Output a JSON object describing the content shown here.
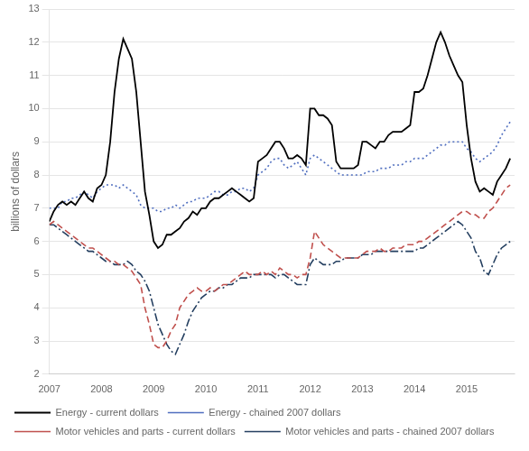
{
  "chart_data": {
    "type": "line",
    "ylabel": "billions of dollars",
    "x": [
      2007.0,
      2007.083,
      2007.167,
      2007.25,
      2007.333,
      2007.417,
      2007.5,
      2007.583,
      2007.667,
      2007.75,
      2007.833,
      2007.917,
      2008.0,
      2008.083,
      2008.167,
      2008.25,
      2008.333,
      2008.417,
      2008.5,
      2008.583,
      2008.667,
      2008.75,
      2008.833,
      2008.917,
      2009.0,
      2009.083,
      2009.167,
      2009.25,
      2009.333,
      2009.417,
      2009.5,
      2009.583,
      2009.667,
      2009.75,
      2009.833,
      2009.917,
      2010.0,
      2010.083,
      2010.167,
      2010.25,
      2010.333,
      2010.417,
      2010.5,
      2010.583,
      2010.667,
      2010.75,
      2010.833,
      2010.917,
      2011.0,
      2011.083,
      2011.167,
      2011.25,
      2011.333,
      2011.417,
      2011.5,
      2011.583,
      2011.667,
      2011.75,
      2011.833,
      2011.917,
      2012.0,
      2012.083,
      2012.167,
      2012.25,
      2012.333,
      2012.417,
      2012.5,
      2012.583,
      2012.667,
      2012.75,
      2012.833,
      2012.917,
      2013.0,
      2013.083,
      2013.167,
      2013.25,
      2013.333,
      2013.417,
      2013.5,
      2013.583,
      2013.667,
      2013.75,
      2013.833,
      2013.917,
      2014.0,
      2014.083,
      2014.167,
      2014.25,
      2014.333,
      2014.417,
      2014.5,
      2014.583,
      2014.667,
      2014.75,
      2014.833,
      2014.917,
      2015.0,
      2015.083,
      2015.167,
      2015.25,
      2015.333,
      2015.417,
      2015.5,
      2015.583,
      2015.667,
      2015.75,
      2015.833
    ],
    "series": [
      {
        "name": "Energy - current dollars",
        "color": "#000000",
        "line_style": "solid",
        "values": [
          6.6,
          6.9,
          7.1,
          7.2,
          7.1,
          7.2,
          7.1,
          7.3,
          7.5,
          7.3,
          7.2,
          7.6,
          7.7,
          8.0,
          9.0,
          10.5,
          11.5,
          12.1,
          11.8,
          11.5,
          10.5,
          9.0,
          7.5,
          6.8,
          6.0,
          5.8,
          5.9,
          6.2,
          6.2,
          6.3,
          6.4,
          6.6,
          6.7,
          6.9,
          6.8,
          7.0,
          7.0,
          7.2,
          7.3,
          7.3,
          7.4,
          7.5,
          7.6,
          7.5,
          7.4,
          7.3,
          7.2,
          7.3,
          8.4,
          8.5,
          8.6,
          8.8,
          9.0,
          9.0,
          8.8,
          8.5,
          8.5,
          8.6,
          8.5,
          8.3,
          10.0,
          10.0,
          9.8,
          9.8,
          9.7,
          9.5,
          8.4,
          8.2,
          8.2,
          8.2,
          8.2,
          8.3,
          9.0,
          9.0,
          8.9,
          8.8,
          9.0,
          9.0,
          9.2,
          9.3,
          9.3,
          9.3,
          9.4,
          9.5,
          10.5,
          10.5,
          10.6,
          11.0,
          11.5,
          12.0,
          12.3,
          12.0,
          11.6,
          11.3,
          11.0,
          10.8,
          9.5,
          8.5,
          7.8,
          7.5,
          7.6,
          7.5,
          7.4,
          7.8,
          8.0,
          8.2,
          8.5
        ]
      },
      {
        "name": "Energy - chained 2007 dollars",
        "color": "#4F6EBF",
        "line_style": "dotted",
        "values": [
          7.0,
          7.0,
          7.0,
          7.2,
          7.2,
          7.3,
          7.3,
          7.4,
          7.5,
          7.4,
          7.3,
          7.5,
          7.6,
          7.7,
          7.7,
          7.7,
          7.6,
          7.7,
          7.6,
          7.5,
          7.4,
          7.1,
          7.0,
          7.0,
          7.0,
          6.9,
          6.9,
          7.0,
          7.0,
          7.1,
          7.0,
          7.1,
          7.2,
          7.2,
          7.3,
          7.3,
          7.3,
          7.4,
          7.5,
          7.5,
          7.4,
          7.4,
          7.5,
          7.5,
          7.6,
          7.6,
          7.5,
          7.6,
          8.0,
          8.1,
          8.2,
          8.4,
          8.5,
          8.5,
          8.3,
          8.2,
          8.3,
          8.4,
          8.2,
          8.0,
          8.5,
          8.6,
          8.5,
          8.4,
          8.3,
          8.2,
          8.1,
          8.0,
          8.0,
          8.0,
          8.0,
          8.0,
          8.0,
          8.1,
          8.1,
          8.1,
          8.2,
          8.2,
          8.2,
          8.3,
          8.3,
          8.3,
          8.4,
          8.4,
          8.5,
          8.5,
          8.5,
          8.6,
          8.7,
          8.8,
          8.9,
          8.9,
          9.0,
          9.0,
          9.0,
          9.0,
          8.8,
          8.7,
          8.5,
          8.4,
          8.5,
          8.6,
          8.7,
          8.9,
          9.2,
          9.4,
          9.6
        ]
      },
      {
        "name": "Motor vehicles and parts - current dollars",
        "color": "#C0504D",
        "line_style": "dashed",
        "values": [
          6.5,
          6.6,
          6.5,
          6.4,
          6.3,
          6.2,
          6.1,
          6.0,
          5.9,
          5.8,
          5.8,
          5.7,
          5.6,
          5.5,
          5.4,
          5.4,
          5.3,
          5.3,
          5.2,
          5.1,
          4.9,
          4.7,
          4.0,
          3.5,
          2.9,
          2.8,
          2.8,
          3.0,
          3.3,
          3.5,
          4.0,
          4.2,
          4.4,
          4.5,
          4.6,
          4.5,
          4.5,
          4.6,
          4.5,
          4.6,
          4.7,
          4.7,
          4.8,
          4.9,
          5.0,
          5.1,
          5.0,
          5.0,
          5.0,
          5.1,
          5.0,
          5.1,
          5.0,
          5.2,
          5.1,
          5.0,
          5.0,
          4.9,
          5.0,
          5.0,
          5.5,
          6.3,
          6.1,
          5.9,
          5.8,
          5.7,
          5.6,
          5.5,
          5.5,
          5.5,
          5.5,
          5.5,
          5.6,
          5.7,
          5.7,
          5.7,
          5.8,
          5.7,
          5.7,
          5.8,
          5.8,
          5.8,
          5.9,
          5.9,
          5.9,
          6.0,
          6.0,
          6.1,
          6.2,
          6.3,
          6.4,
          6.5,
          6.6,
          6.7,
          6.8,
          6.9,
          6.9,
          6.8,
          6.8,
          6.7,
          6.7,
          6.9,
          7.0,
          7.2,
          7.4,
          7.6,
          7.7
        ]
      },
      {
        "name": "Motor vehicles and parts - chained 2007 dollars",
        "color": "#243F60",
        "line_style": "dashdot",
        "values": [
          6.5,
          6.5,
          6.4,
          6.3,
          6.2,
          6.1,
          6.0,
          5.9,
          5.8,
          5.7,
          5.7,
          5.6,
          5.5,
          5.4,
          5.4,
          5.3,
          5.3,
          5.3,
          5.4,
          5.3,
          5.1,
          5.0,
          4.8,
          4.5,
          4.0,
          3.5,
          3.2,
          2.9,
          2.7,
          2.6,
          2.9,
          3.2,
          3.6,
          3.9,
          4.1,
          4.3,
          4.4,
          4.5,
          4.5,
          4.6,
          4.6,
          4.7,
          4.7,
          4.8,
          4.9,
          4.9,
          4.9,
          5.0,
          5.0,
          5.0,
          5.0,
          5.0,
          4.9,
          5.0,
          5.0,
          4.9,
          4.8,
          4.7,
          4.7,
          4.7,
          5.3,
          5.5,
          5.4,
          5.3,
          5.3,
          5.3,
          5.4,
          5.4,
          5.5,
          5.5,
          5.5,
          5.5,
          5.6,
          5.6,
          5.6,
          5.7,
          5.7,
          5.7,
          5.7,
          5.7,
          5.7,
          5.7,
          5.7,
          5.7,
          5.7,
          5.8,
          5.8,
          5.9,
          6.0,
          6.1,
          6.2,
          6.3,
          6.4,
          6.5,
          6.6,
          6.5,
          6.3,
          6.1,
          5.7,
          5.5,
          5.1,
          5.0,
          5.3,
          5.6,
          5.8,
          5.9,
          6.0
        ]
      }
    ],
    "xlim": [
      2007.0,
      2015.917
    ],
    "xticks": [
      2007,
      2008,
      2009,
      2010,
      2011,
      2012,
      2013,
      2014,
      2015
    ],
    "ylim": [
      2,
      13
    ],
    "yticks": [
      2,
      3,
      4,
      5,
      6,
      7,
      8,
      9,
      10,
      11,
      12,
      13
    ],
    "grid": "y",
    "legend": "bottom"
  }
}
